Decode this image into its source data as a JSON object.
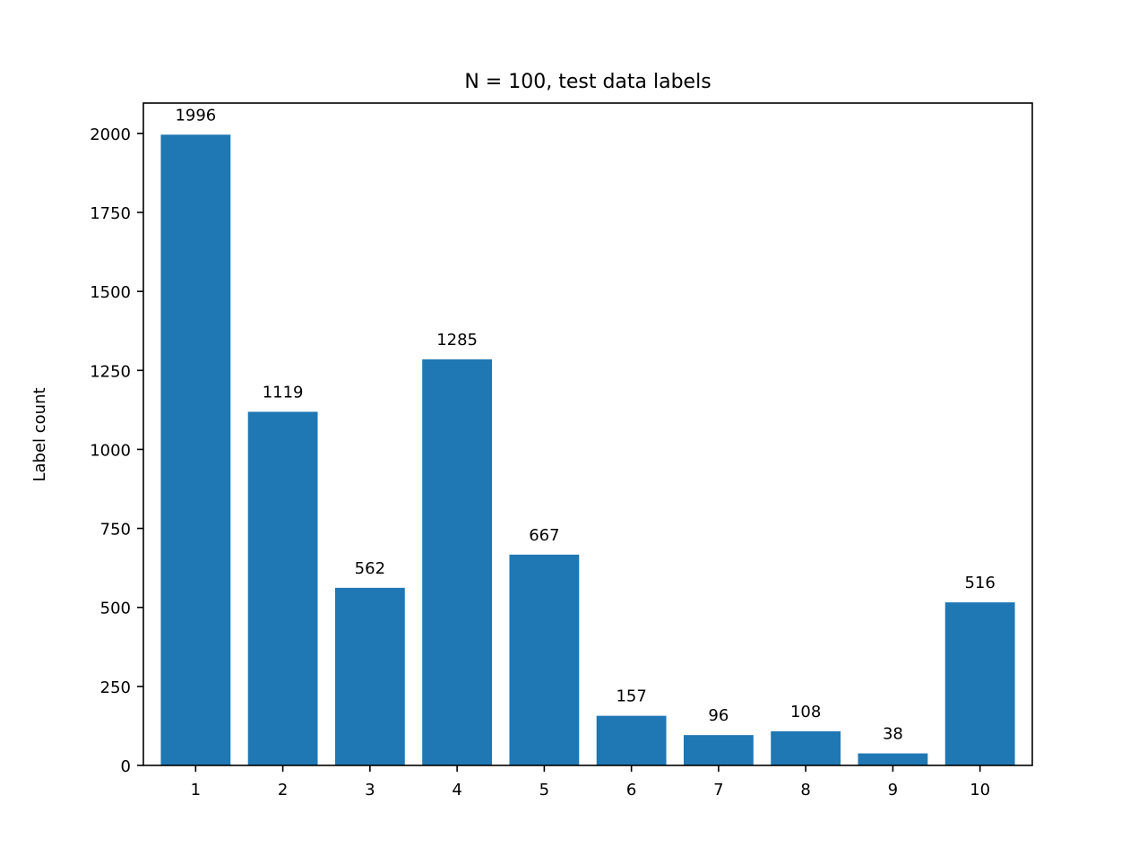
{
  "chart_data": {
    "type": "bar",
    "title": "N = 100, test data labels",
    "xlabel": "",
    "ylabel": "Label count",
    "categories": [
      "1",
      "2",
      "3",
      "4",
      "5",
      "6",
      "7",
      "8",
      "9",
      "10"
    ],
    "values": [
      1996,
      1119,
      562,
      1285,
      667,
      157,
      96,
      108,
      38,
      516
    ],
    "data_labels": [
      "1996",
      "1119",
      "562",
      "1285",
      "667",
      "157",
      "96",
      "108",
      "38",
      "516"
    ],
    "ylim": [
      0,
      2096
    ],
    "yticks": [
      0,
      250,
      500,
      750,
      1000,
      1250,
      1500,
      1750,
      2000
    ],
    "ytick_labels": [
      "0",
      "250",
      "500",
      "750",
      "1000",
      "1250",
      "1500",
      "1750",
      "2000"
    ],
    "grid": false,
    "legend": null,
    "colors": {
      "bar": "#1f77b4",
      "axis": "#000000"
    }
  }
}
